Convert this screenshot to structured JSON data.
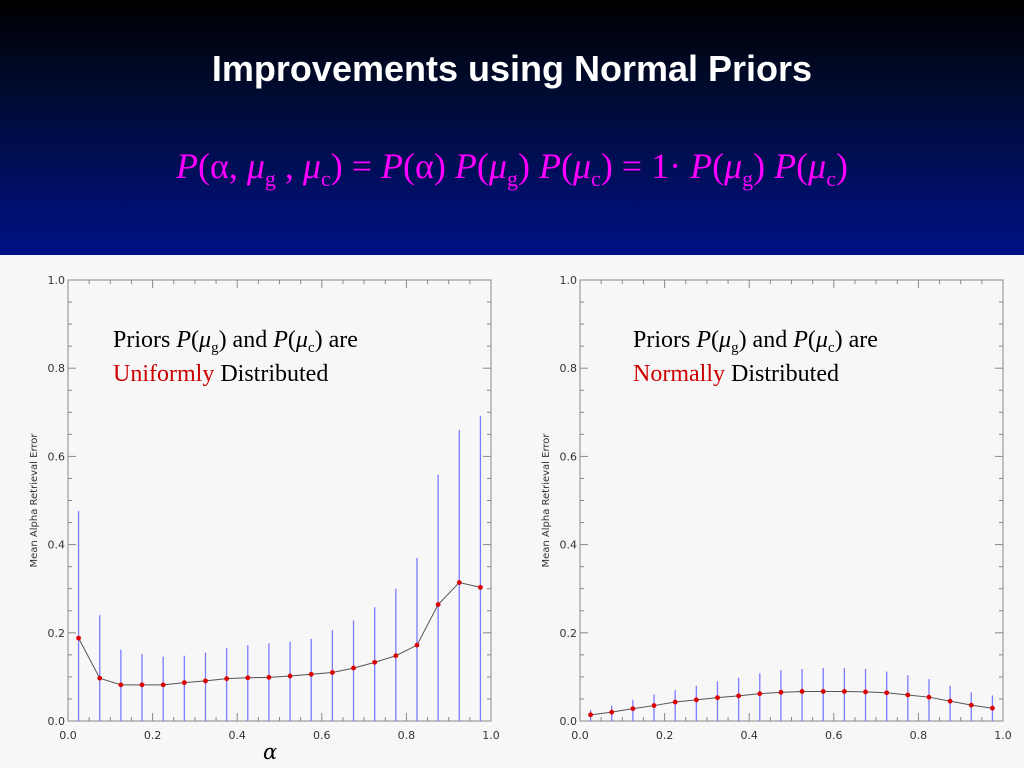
{
  "slide": {
    "title": "Improvements using Normal Priors",
    "formula_color": "#ff00ff",
    "formula_parts": [
      "P",
      "(α, ",
      "μ",
      "g",
      " , ",
      "μ",
      "c",
      ") = ",
      "P",
      "(α) ",
      "P",
      "(",
      "μ",
      "g",
      ") ",
      "P",
      "(",
      "μ",
      "c",
      ") = 1· ",
      "P",
      "(",
      "μ",
      "g",
      ") ",
      "P",
      "(",
      "μ",
      "c",
      ")"
    ]
  },
  "annotations": [
    {
      "line1": [
        "Priors ",
        "P",
        "(",
        "μ",
        "g",
        ") and ",
        "P",
        "(",
        "μ",
        "c",
        ") are"
      ],
      "highlight": "Uniformly",
      "rest": " Distributed",
      "highlight_color": "#cc0000"
    },
    {
      "line1": [
        "Priors ",
        "P",
        "(",
        "μ",
        "g",
        ") and ",
        "P",
        "(",
        "μ",
        "c",
        ") are"
      ],
      "highlight": "Normally",
      "rest": " Distributed",
      "highlight_color": "#cc0000"
    }
  ],
  "chart_data": [
    {
      "type": "line",
      "ylabel": "Mean Alpha Retrieval Error",
      "xlabel": "α",
      "xlim": [
        0,
        1
      ],
      "ylim": [
        0,
        1
      ],
      "xticks": [
        "0.0",
        "0.2",
        "0.4",
        "0.6",
        "0.8",
        "1.0"
      ],
      "yticks": [
        "0.0",
        "0.2",
        "0.4",
        "0.6",
        "0.8",
        "1.0"
      ],
      "line_color": "#555555",
      "point_color": "#dd0000",
      "errorbar_color": "#7b7bff",
      "series": [
        {
          "x": [
            0.025,
            0.075,
            0.125,
            0.175,
            0.225,
            0.275,
            0.325,
            0.375,
            0.425,
            0.475,
            0.525,
            0.575,
            0.625,
            0.675,
            0.725,
            0.775,
            0.825,
            0.875,
            0.925,
            0.975
          ],
          "y": [
            0.188,
            0.097,
            0.082,
            0.082,
            0.082,
            0.087,
            0.091,
            0.096,
            0.098,
            0.099,
            0.102,
            0.106,
            0.11,
            0.12,
            0.133,
            0.148,
            0.172,
            0.264,
            0.314,
            0.303
          ],
          "err_low": [
            0.0,
            0.0,
            0.0,
            0.0,
            0.0,
            0.0,
            0.0,
            0.0,
            0.0,
            0.0,
            0.0,
            0.0,
            0.0,
            0.0,
            0.0,
            0.0,
            0.0,
            0.0,
            0.0,
            0.0
          ],
          "err_high": [
            0.476,
            0.24,
            0.162,
            0.152,
            0.146,
            0.148,
            0.155,
            0.165,
            0.172,
            0.176,
            0.18,
            0.186,
            0.206,
            0.228,
            0.258,
            0.3,
            0.37,
            0.558,
            0.66,
            0.692
          ]
        }
      ]
    },
    {
      "type": "line",
      "ylabel": "Mean Alpha Retrieval Error",
      "xlabel": "",
      "xlim": [
        0,
        1
      ],
      "ylim": [
        0,
        1
      ],
      "xticks": [
        "0.0",
        "0.2",
        "0.4",
        "0.6",
        "0.8",
        "1.0"
      ],
      "yticks": [
        "0.0",
        "0.2",
        "0.4",
        "0.6",
        "0.8",
        "1.0"
      ],
      "line_color": "#555555",
      "point_color": "#dd0000",
      "errorbar_color": "#7b7bff",
      "series": [
        {
          "x": [
            0.025,
            0.075,
            0.125,
            0.175,
            0.225,
            0.275,
            0.325,
            0.375,
            0.425,
            0.475,
            0.525,
            0.575,
            0.625,
            0.675,
            0.725,
            0.775,
            0.825,
            0.875,
            0.925,
            0.975
          ],
          "y": [
            0.014,
            0.02,
            0.028,
            0.035,
            0.043,
            0.048,
            0.053,
            0.057,
            0.062,
            0.065,
            0.067,
            0.067,
            0.067,
            0.066,
            0.064,
            0.059,
            0.054,
            0.045,
            0.036,
            0.029
          ],
          "err_low": [
            0.0,
            0.0,
            0.0,
            0.0,
            0.0,
            0.0,
            0.0,
            0.0,
            0.0,
            0.0,
            0.0,
            0.0,
            0.0,
            0.0,
            0.0,
            0.0,
            0.0,
            0.0,
            0.0,
            0.0
          ],
          "err_high": [
            0.025,
            0.035,
            0.048,
            0.06,
            0.07,
            0.08,
            0.09,
            0.098,
            0.108,
            0.115,
            0.118,
            0.12,
            0.12,
            0.118,
            0.112,
            0.104,
            0.095,
            0.08,
            0.065,
            0.058
          ]
        }
      ]
    }
  ]
}
